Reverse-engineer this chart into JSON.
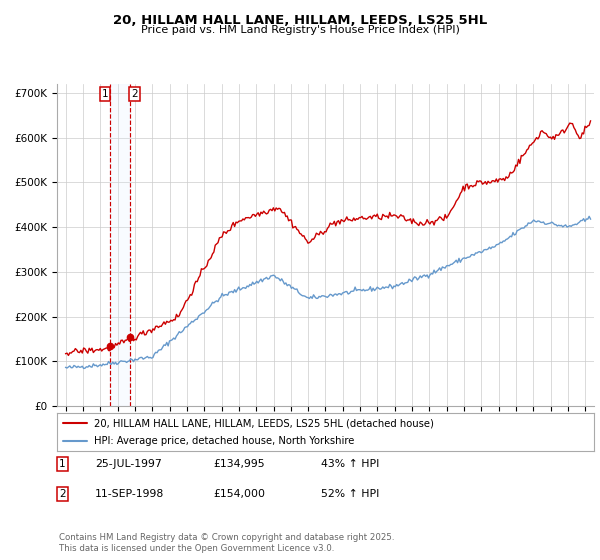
{
  "title": "20, HILLAM HALL LANE, HILLAM, LEEDS, LS25 5HL",
  "subtitle": "Price paid vs. HM Land Registry's House Price Index (HPI)",
  "legend_line1": "20, HILLAM HALL LANE, HILLAM, LEEDS, LS25 5HL (detached house)",
  "legend_line2": "HPI: Average price, detached house, North Yorkshire",
  "footer": "Contains HM Land Registry data © Crown copyright and database right 2025.\nThis data is licensed under the Open Government Licence v3.0.",
  "transactions": [
    {
      "label": "1",
      "date": "25-JUL-1997",
      "price": 134995,
      "hpi_pct": "43% ↑ HPI",
      "x": 1997.56
    },
    {
      "label": "2",
      "date": "11-SEP-1998",
      "price": 154000,
      "hpi_pct": "52% ↑ HPI",
      "x": 1998.7
    }
  ],
  "red_color": "#cc0000",
  "blue_color": "#6699cc",
  "vline_color": "#cc0000",
  "shade_color": "#ddeeff",
  "ylim": [
    0,
    720000
  ],
  "yticks": [
    0,
    100000,
    200000,
    300000,
    400000,
    500000,
    600000,
    700000
  ],
  "ytick_labels": [
    "£0",
    "£100K",
    "£200K",
    "£300K",
    "£400K",
    "£500K",
    "£600K",
    "£700K"
  ],
  "xlim_start": 1994.5,
  "xlim_end": 2025.5,
  "xticks": [
    1995,
    1996,
    1997,
    1998,
    1999,
    2000,
    2001,
    2002,
    2003,
    2004,
    2005,
    2006,
    2007,
    2008,
    2009,
    2010,
    2011,
    2012,
    2013,
    2014,
    2015,
    2016,
    2017,
    2018,
    2019,
    2020,
    2021,
    2022,
    2023,
    2024,
    2025
  ]
}
